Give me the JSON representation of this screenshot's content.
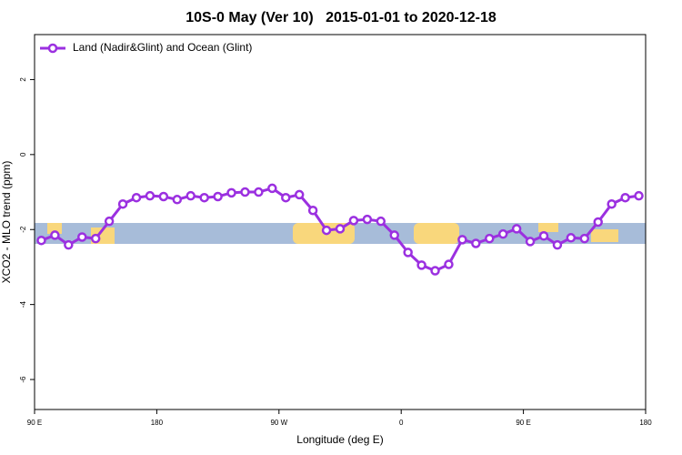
{
  "chart_data": {
    "type": "line",
    "title": "10S-0 May (Ver 10)   2015-01-01 to 2020-12-18",
    "x_label": "Longitude (deg E)",
    "y_label": "XCO2 - MLO trend (ppm)",
    "x": [
      95,
      105,
      115,
      125,
      135,
      145,
      155,
      165,
      175,
      185,
      195,
      205,
      215,
      225,
      235,
      245,
      255,
      265,
      275,
      285,
      295,
      305,
      315,
      325,
      335,
      345,
      355,
      365,
      375,
      385,
      395,
      405,
      415,
      425,
      435,
      445,
      455,
      465,
      475,
      485,
      495,
      505,
      515,
      525,
      535
    ],
    "series": [
      {
        "name": "Land (Nadir&Glint) and Ocean (Glint)",
        "color": "#9b30e0",
        "values": [
          -2.29,
          -2.15,
          -2.41,
          -2.2,
          -2.24,
          -1.78,
          -1.32,
          -1.15,
          -1.1,
          -1.12,
          -1.2,
          -1.1,
          -1.15,
          -1.12,
          -1.02,
          -1.0,
          -1.0,
          -0.9,
          -1.15,
          -1.07,
          -1.49,
          -2.02,
          -1.98,
          -1.76,
          -1.73,
          -1.78,
          -2.15,
          -2.61,
          -2.95,
          -3.1,
          -2.93,
          -2.27,
          -2.37,
          -2.24,
          -2.12,
          -1.98,
          -2.32,
          -2.17,
          -2.41,
          -2.22,
          -2.24,
          -1.8,
          -1.32,
          -1.15,
          -1.1
        ]
      }
    ],
    "xlim": [
      90,
      540
    ],
    "xticks": [
      {
        "value": 90,
        "label": "90 E"
      },
      180,
      {
        "value": 270,
        "label": "90 W"
      },
      {
        "value": 360,
        "label": "0"
      },
      {
        "value": 450,
        "label": "90 E"
      },
      180
    ],
    "ylim": [
      -6.8,
      3.2
    ],
    "yticks": [
      2,
      0,
      -2,
      -4,
      -6
    ],
    "legend": "upper left"
  }
}
